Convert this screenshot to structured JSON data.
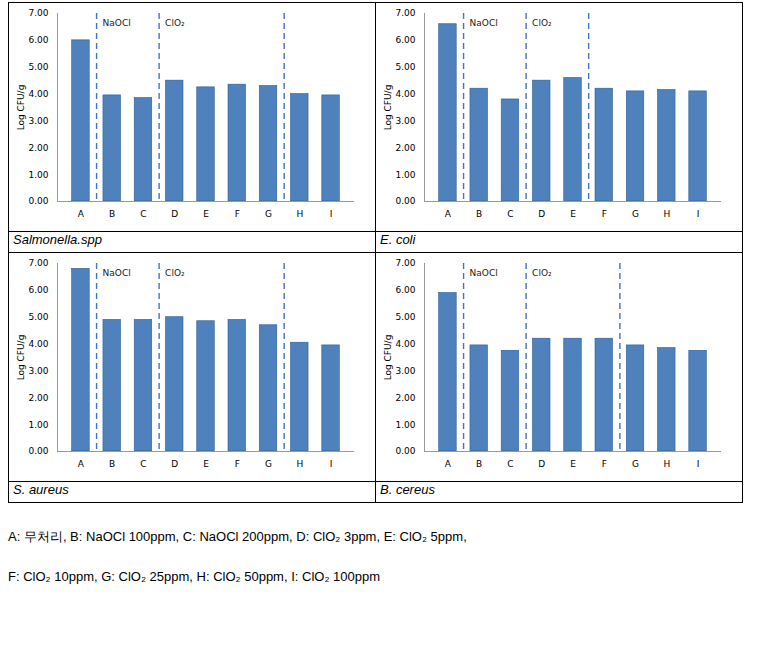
{
  "chart_data": [
    {
      "type": "bar",
      "caption": "Salmonella.spp",
      "ylabel": "Log CFU/g",
      "categories": [
        "A",
        "B",
        "C",
        "D",
        "E",
        "F",
        "G",
        "H",
        "I"
      ],
      "values": [
        6.0,
        3.95,
        3.85,
        4.5,
        4.25,
        4.35,
        4.3,
        4.0,
        3.95
      ],
      "color": "#4f81bd",
      "ylim": [
        0,
        7
      ],
      "yticks": [
        {
          "value": 0,
          "label": "0.00"
        },
        {
          "value": 1,
          "label": "1.00"
        },
        {
          "value": 2,
          "label": "2.00"
        },
        {
          "value": 3,
          "label": "3.00"
        },
        {
          "value": 4,
          "label": "4.00"
        },
        {
          "value": 5,
          "label": "5.00"
        },
        {
          "value": 6,
          "label": "6.00"
        },
        {
          "value": 7,
          "label": "7.00"
        }
      ],
      "grid": false,
      "dividers": [
        "B",
        "D",
        "H"
      ],
      "annotations": [
        {
          "text": "NaOCl",
          "x": "B"
        },
        {
          "text": "ClO₂",
          "x": "D"
        }
      ]
    },
    {
      "type": "bar",
      "caption": "E. coli",
      "ylabel": "Log CFU/g",
      "categories": [
        "A",
        "B",
        "C",
        "D",
        "E",
        "F",
        "G",
        "H",
        "I"
      ],
      "values": [
        6.6,
        4.2,
        3.8,
        4.5,
        4.6,
        4.2,
        4.1,
        4.15,
        4.1
      ],
      "color": "#4f81bd",
      "ylim": [
        0,
        7
      ],
      "yticks": [
        {
          "value": 0,
          "label": "0.00"
        },
        {
          "value": 1,
          "label": "1.00"
        },
        {
          "value": 2,
          "label": "2.00"
        },
        {
          "value": 3,
          "label": "3.00"
        },
        {
          "value": 4,
          "label": "4.00"
        },
        {
          "value": 5,
          "label": "5.00"
        },
        {
          "value": 6,
          "label": "6.00"
        },
        {
          "value": 7,
          "label": "7.00"
        }
      ],
      "grid": false,
      "dividers": [
        "B",
        "D",
        "F"
      ],
      "annotations": [
        {
          "text": "NaOCl",
          "x": "B"
        },
        {
          "text": "ClO₂",
          "x": "D"
        }
      ]
    },
    {
      "type": "bar",
      "caption": "S. aureus",
      "ylabel": "Log CFU/g",
      "categories": [
        "A",
        "B",
        "C",
        "D",
        "E",
        "F",
        "G",
        "H",
        "I"
      ],
      "values": [
        6.8,
        4.9,
        4.9,
        5.0,
        4.85,
        4.9,
        4.7,
        4.05,
        3.95
      ],
      "color": "#4f81bd",
      "ylim": [
        0,
        7
      ],
      "yticks": [
        {
          "value": 0,
          "label": "0.00"
        },
        {
          "value": 1,
          "label": "1.00"
        },
        {
          "value": 2,
          "label": "2.00"
        },
        {
          "value": 3,
          "label": "3.00"
        },
        {
          "value": 4,
          "label": "4.00"
        },
        {
          "value": 5,
          "label": "5.00"
        },
        {
          "value": 6,
          "label": "6.00"
        },
        {
          "value": 7,
          "label": "7.00"
        }
      ],
      "grid": false,
      "dividers": [
        "B",
        "D",
        "H"
      ],
      "annotations": [
        {
          "text": "NaOCl",
          "x": "B"
        },
        {
          "text": "ClO₂",
          "x": "D"
        }
      ]
    },
    {
      "type": "bar",
      "caption": "B. cereus",
      "ylabel": "Log CFU/g",
      "categories": [
        "A",
        "B",
        "C",
        "D",
        "E",
        "F",
        "G",
        "H",
        "I"
      ],
      "values": [
        5.9,
        3.95,
        3.75,
        4.2,
        4.2,
        4.2,
        3.95,
        3.85,
        3.75
      ],
      "color": "#4f81bd",
      "ylim": [
        0,
        7
      ],
      "yticks": [
        {
          "value": 0,
          "label": "0.00"
        },
        {
          "value": 1,
          "label": "1.00"
        },
        {
          "value": 2,
          "label": "2.00"
        },
        {
          "value": 3,
          "label": "3.00"
        },
        {
          "value": 4,
          "label": "4.00"
        },
        {
          "value": 5,
          "label": "5.00"
        },
        {
          "value": 6,
          "label": "6.00"
        },
        {
          "value": 7,
          "label": "7.00"
        }
      ],
      "grid": false,
      "dividers": [
        "B",
        "D",
        "G"
      ],
      "annotations": [
        {
          "text": "NaOCl",
          "x": "B"
        },
        {
          "text": "ClO₂",
          "x": "D"
        }
      ]
    }
  ],
  "footnote": [
    "A: 무처리, B: NaOCl 100ppm, C: NaOCl 200ppm, D: ClO₂ 3ppm, E: ClO₂ 5ppm,",
    "F: ClO₂ 10ppm, G: ClO₂ 25ppm, H: ClO₂ 50ppm, I: ClO₂ 100ppm"
  ]
}
